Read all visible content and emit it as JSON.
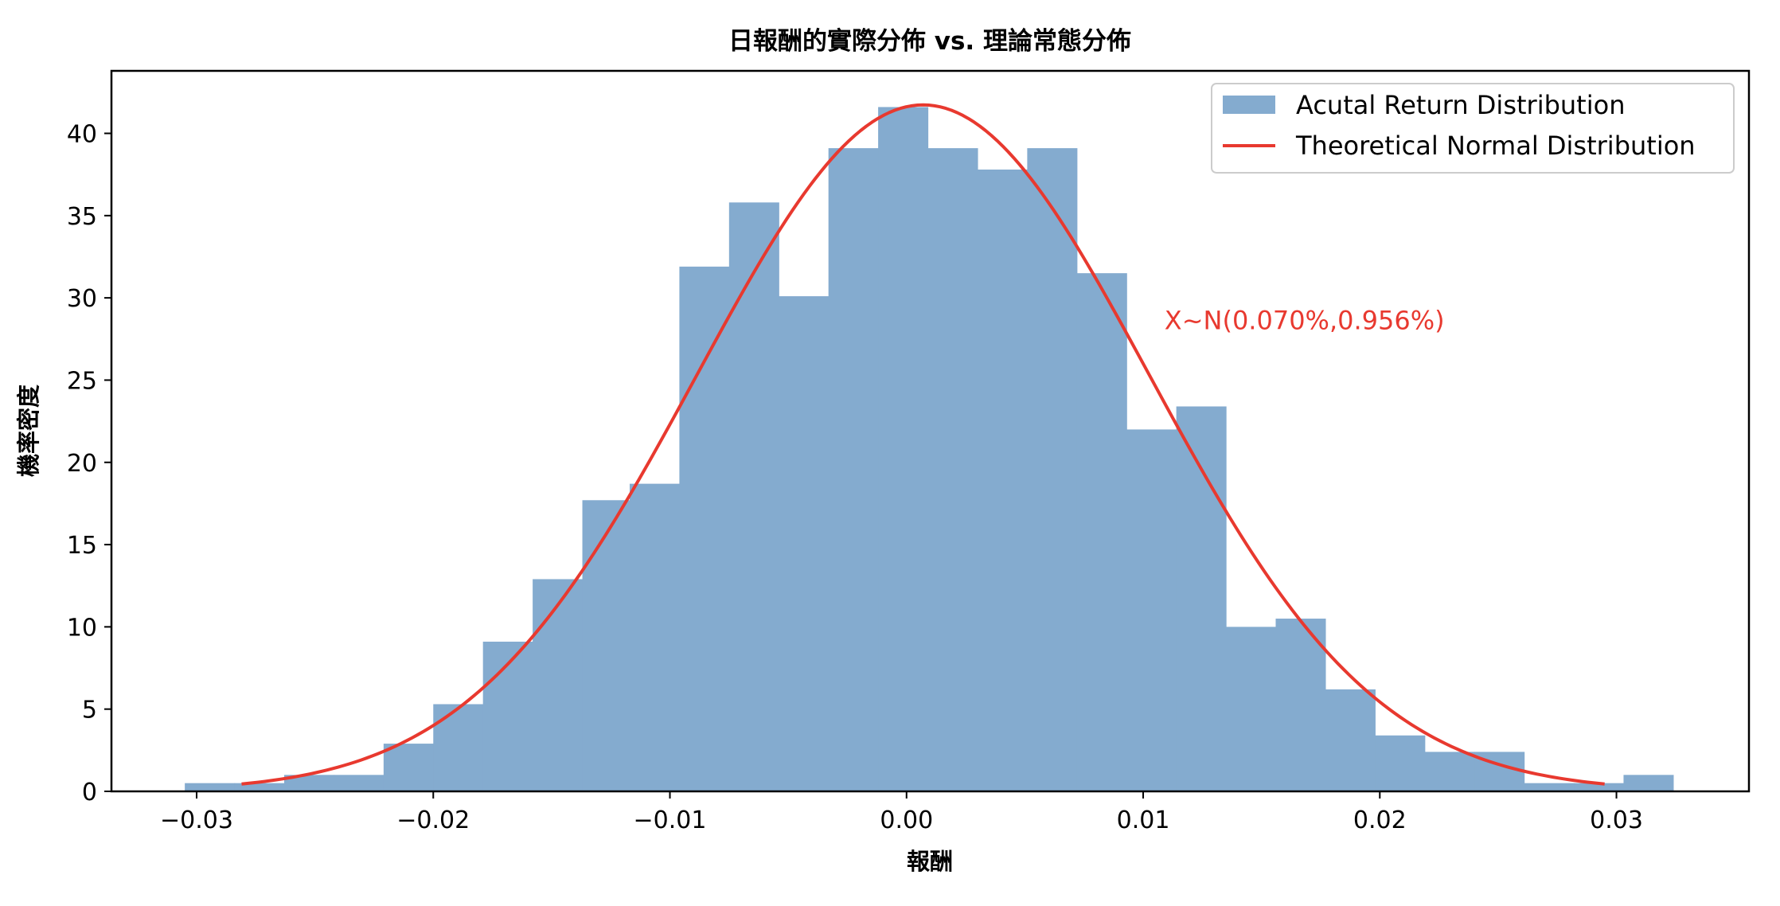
{
  "chart_data": {
    "type": "bar",
    "title": "日報酬的實際分佈 vs. 理論常態分佈",
    "xlabel": "報酬",
    "ylabel": "機率密度",
    "xlim": [
      -0.0336,
      0.0356
    ],
    "ylim": [
      0,
      43.8
    ],
    "xticks": [
      -0.03,
      -0.02,
      -0.01,
      0.0,
      0.01,
      0.02,
      0.03
    ],
    "xtick_labels": [
      "−0.03",
      "−0.02",
      "−0.01",
      "0.00",
      "0.01",
      "0.02",
      "0.03"
    ],
    "yticks": [
      0,
      5,
      10,
      15,
      20,
      25,
      30,
      35,
      40
    ],
    "ytick_labels": [
      "0",
      "5",
      "10",
      "15",
      "20",
      "25",
      "30",
      "35",
      "40"
    ],
    "grid": false,
    "legend_position": "top-right",
    "histogram": {
      "name": "Acutal Return Distribution",
      "color": "#84abcf",
      "bin_edges": [
        -0.0305,
        -0.0284,
        -0.0263,
        -0.0242,
        -0.0221,
        -0.02,
        -0.0179,
        -0.0158,
        -0.0137,
        -0.0117,
        -0.0096,
        -0.0075,
        -0.0054,
        -0.0033,
        -0.0012,
        0.0009,
        0.003,
        0.0051,
        0.0072,
        0.0093,
        0.0114,
        0.0135,
        0.0156,
        0.0177,
        0.0198,
        0.0219,
        0.024,
        0.0261,
        0.0282,
        0.0303,
        0.0324
      ],
      "densities": [
        0.5,
        0.5,
        1.0,
        1.0,
        2.9,
        5.3,
        9.1,
        12.9,
        17.7,
        18.7,
        31.9,
        35.8,
        30.1,
        39.1,
        41.6,
        39.1,
        37.8,
        39.1,
        31.5,
        22.0,
        23.4,
        10.0,
        10.5,
        6.2,
        3.4,
        2.4,
        2.4,
        0.5,
        0.5,
        1.0
      ]
    },
    "curve": {
      "name": "Theoretical Normal Distribution",
      "color": "#e8392f",
      "mean": 0.0007,
      "std": 0.00956,
      "x_range": [
        -0.0281,
        0.0295
      ]
    },
    "annotation": {
      "text": "X~N(0.070%,0.956%)",
      "x": 0.0109,
      "y": 28.1,
      "color": "#e8392f"
    }
  }
}
